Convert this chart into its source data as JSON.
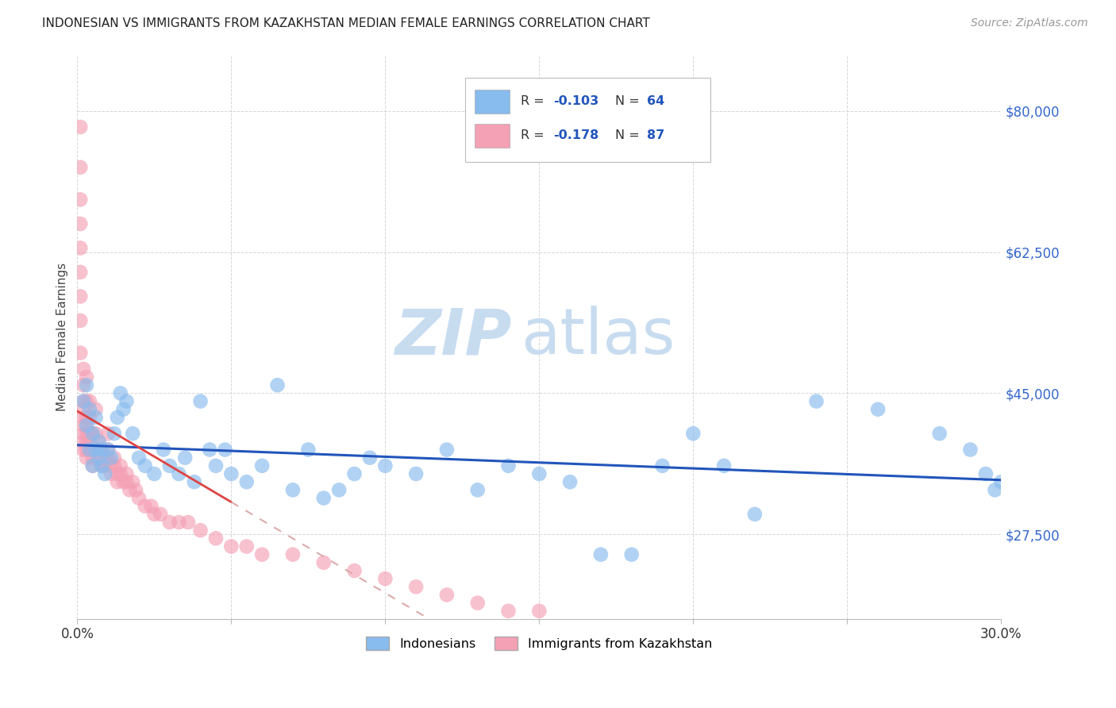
{
  "title": "INDONESIAN VS IMMIGRANTS FROM KAZAKHSTAN MEDIAN FEMALE EARNINGS CORRELATION CHART",
  "source": "Source: ZipAtlas.com",
  "ylabel": "Median Female Earnings",
  "xlim": [
    0.0,
    0.3
  ],
  "ylim": [
    17000,
    87000
  ],
  "yticks": [
    27500,
    45000,
    62500,
    80000
  ],
  "ytick_labels": [
    "$27,500",
    "$45,000",
    "$62,500",
    "$80,000"
  ],
  "xticks": [
    0.0,
    0.05,
    0.1,
    0.15,
    0.2,
    0.25,
    0.3
  ],
  "xtick_labels": [
    "0.0%",
    "",
    "",
    "",
    "",
    "",
    "30.0%"
  ],
  "color_blue": "#88BBEE",
  "color_pink": "#F4A0B5",
  "color_blue_line": "#2255BB",
  "color_pink_line_solid": "#DD4444",
  "color_pink_line_dash": "#DDAAAA",
  "color_axis_label": "#3366CC",
  "watermark_zip": "ZIP",
  "watermark_atlas": "atlas",
  "watermark_color": "#C8DCF0",
  "blue_x": [
    0.002,
    0.003,
    0.003,
    0.004,
    0.004,
    0.005,
    0.005,
    0.006,
    0.006,
    0.007,
    0.007,
    0.008,
    0.008,
    0.009,
    0.01,
    0.011,
    0.012,
    0.013,
    0.014,
    0.015,
    0.016,
    0.018,
    0.02,
    0.022,
    0.025,
    0.028,
    0.03,
    0.033,
    0.035,
    0.038,
    0.04,
    0.043,
    0.045,
    0.048,
    0.05,
    0.055,
    0.06,
    0.065,
    0.07,
    0.075,
    0.08,
    0.085,
    0.09,
    0.095,
    0.1,
    0.11,
    0.12,
    0.13,
    0.14,
    0.15,
    0.16,
    0.17,
    0.18,
    0.19,
    0.2,
    0.21,
    0.22,
    0.24,
    0.26,
    0.28,
    0.29,
    0.295,
    0.298,
    0.3
  ],
  "blue_y": [
    44000,
    46000,
    41000,
    43000,
    38000,
    40000,
    36000,
    38000,
    42000,
    37000,
    39000,
    36000,
    38000,
    35000,
    38000,
    37000,
    40000,
    42000,
    45000,
    43000,
    44000,
    40000,
    37000,
    36000,
    35000,
    38000,
    36000,
    35000,
    37000,
    34000,
    44000,
    38000,
    36000,
    38000,
    35000,
    34000,
    36000,
    46000,
    33000,
    38000,
    32000,
    33000,
    35000,
    37000,
    36000,
    35000,
    38000,
    33000,
    36000,
    35000,
    34000,
    25000,
    25000,
    36000,
    40000,
    36000,
    30000,
    44000,
    43000,
    40000,
    38000,
    35000,
    33000,
    34000
  ],
  "pink_x": [
    0.001,
    0.001,
    0.001,
    0.001,
    0.001,
    0.001,
    0.001,
    0.001,
    0.001,
    0.002,
    0.002,
    0.002,
    0.002,
    0.002,
    0.002,
    0.002,
    0.002,
    0.002,
    0.003,
    0.003,
    0.003,
    0.003,
    0.003,
    0.003,
    0.003,
    0.003,
    0.004,
    0.004,
    0.004,
    0.004,
    0.004,
    0.005,
    0.005,
    0.005,
    0.005,
    0.006,
    0.006,
    0.006,
    0.007,
    0.007,
    0.007,
    0.008,
    0.008,
    0.008,
    0.009,
    0.009,
    0.01,
    0.01,
    0.01,
    0.011,
    0.011,
    0.012,
    0.012,
    0.013,
    0.013,
    0.014,
    0.014,
    0.015,
    0.016,
    0.016,
    0.017,
    0.018,
    0.019,
    0.02,
    0.022,
    0.024,
    0.025,
    0.027,
    0.03,
    0.033,
    0.036,
    0.04,
    0.045,
    0.05,
    0.055,
    0.06,
    0.07,
    0.08,
    0.09,
    0.1,
    0.11,
    0.12,
    0.13,
    0.14,
    0.15
  ],
  "pink_y": [
    78000,
    73000,
    69000,
    66000,
    63000,
    60000,
    57000,
    54000,
    50000,
    48000,
    46000,
    44000,
    43000,
    42000,
    41000,
    40000,
    39000,
    38000,
    47000,
    44000,
    42000,
    41000,
    40000,
    39000,
    38000,
    37000,
    44000,
    42000,
    40000,
    39000,
    38000,
    40000,
    38000,
    37000,
    36000,
    43000,
    40000,
    38000,
    39000,
    38000,
    37000,
    38000,
    37000,
    36000,
    37000,
    36000,
    40000,
    38000,
    37000,
    36000,
    35000,
    37000,
    36000,
    35000,
    34000,
    36000,
    35000,
    34000,
    35000,
    34000,
    33000,
    34000,
    33000,
    32000,
    31000,
    31000,
    30000,
    30000,
    29000,
    29000,
    29000,
    28000,
    27000,
    26000,
    26000,
    25000,
    25000,
    24000,
    23000,
    22000,
    21000,
    20000,
    19000,
    18000,
    18000
  ]
}
